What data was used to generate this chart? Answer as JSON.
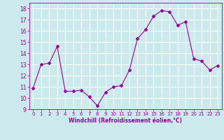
{
  "x": [
    0,
    1,
    2,
    3,
    4,
    5,
    6,
    7,
    8,
    9,
    10,
    11,
    12,
    13,
    14,
    15,
    16,
    17,
    18,
    19,
    20,
    21,
    22,
    23
  ],
  "y": [
    10.9,
    13.0,
    13.1,
    14.6,
    10.6,
    10.6,
    10.7,
    10.1,
    9.3,
    10.5,
    11.0,
    11.1,
    12.5,
    15.3,
    16.1,
    17.3,
    17.8,
    17.7,
    16.5,
    16.8,
    13.5,
    13.3,
    12.5,
    12.9
  ],
  "line_color": "#990099",
  "marker": "D",
  "marker_size": 2,
  "bg_color": "#cce9ee",
  "grid_color": "#ffffff",
  "xlabel": "Windchill (Refroidissement éolien,°C)",
  "xlabel_color": "#990099",
  "tick_color": "#990099",
  "ylim": [
    9,
    18.5
  ],
  "xlim": [
    -0.5,
    23.5
  ],
  "yticks": [
    9,
    10,
    11,
    12,
    13,
    14,
    15,
    16,
    17,
    18
  ],
  "xticks": [
    0,
    1,
    2,
    3,
    4,
    5,
    6,
    7,
    8,
    9,
    10,
    11,
    12,
    13,
    14,
    15,
    16,
    17,
    18,
    19,
    20,
    21,
    22,
    23
  ]
}
